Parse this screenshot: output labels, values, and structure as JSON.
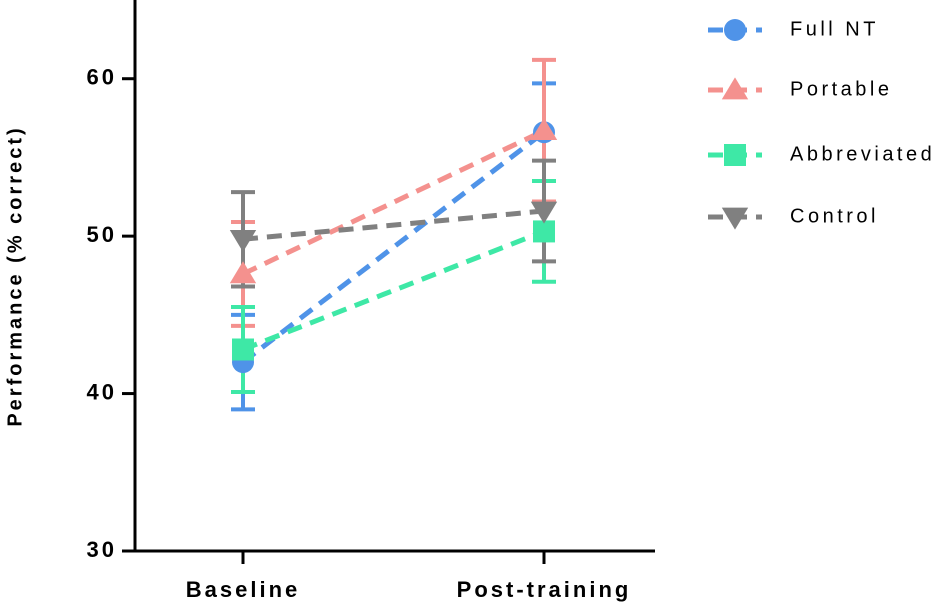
{
  "chart_data": {
    "type": "line",
    "categories": [
      "Baseline",
      "Post-training"
    ],
    "ylabel": "Performance (% correct)",
    "ylim": [
      30,
      65
    ],
    "yticks": [
      30,
      40,
      50,
      60
    ],
    "series": [
      {
        "name": "Full NT",
        "color": "#4f93e8",
        "marker": "circle",
        "values": [
          42.0,
          56.6
        ],
        "errors": [
          3.0,
          3.1
        ]
      },
      {
        "name": "Portable",
        "color": "#f4918e",
        "marker": "triangle",
        "values": [
          47.6,
          56.7
        ],
        "errors": [
          3.3,
          4.5
        ]
      },
      {
        "name": "Abbreviated",
        "color": "#3ee8a6",
        "marker": "square",
        "values": [
          42.8,
          50.3
        ],
        "errors": [
          2.7,
          3.2
        ]
      },
      {
        "name": "Control",
        "color": "#808080",
        "marker": "triangle-down",
        "values": [
          49.8,
          51.6
        ],
        "errors": [
          3.0,
          3.2
        ]
      }
    ]
  }
}
